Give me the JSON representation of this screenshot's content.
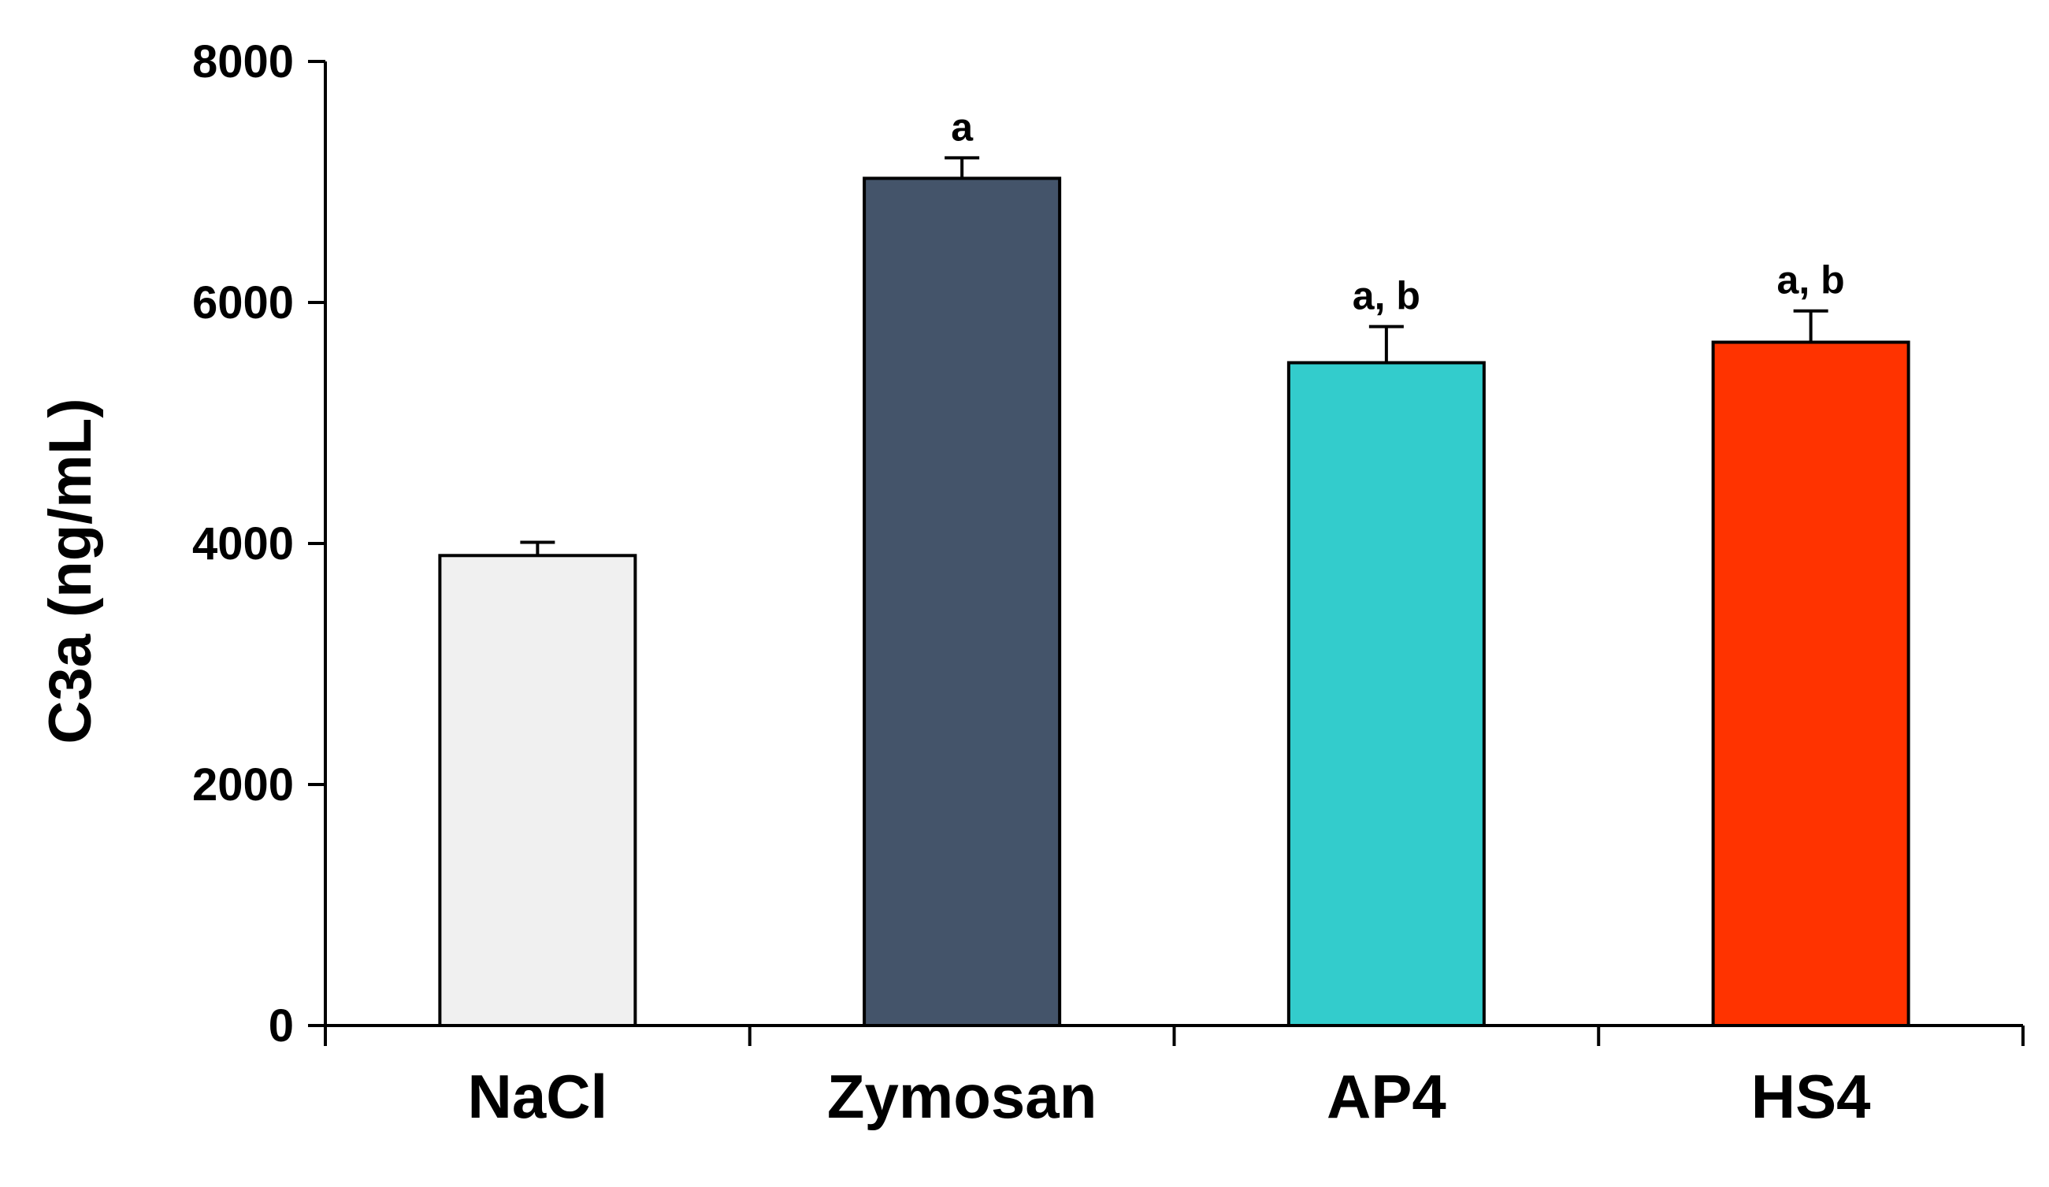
{
  "chart_data": {
    "type": "bar",
    "categories": [
      "NaCl",
      "Zymosan",
      "AP4",
      "HS4"
    ],
    "values": [
      3900,
      7030,
      5500,
      5670
    ],
    "errors": [
      110,
      170,
      300,
      260
    ],
    "annotations": [
      "",
      "a",
      "a, b",
      "a, b"
    ],
    "bar_colors": [
      "#f0f0f0",
      "#44546a",
      "#33cccc",
      "#ff3300"
    ],
    "ylabel": "C3a (ng/mL)",
    "xlabel": "",
    "ylim": [
      0,
      8000
    ],
    "yticks": [
      0,
      2000,
      4000,
      6000,
      8000
    ],
    "ytick_labels": [
      "0",
      "2000",
      "4000",
      "6000",
      "8000"
    ],
    "grid": false,
    "legend": "none"
  }
}
